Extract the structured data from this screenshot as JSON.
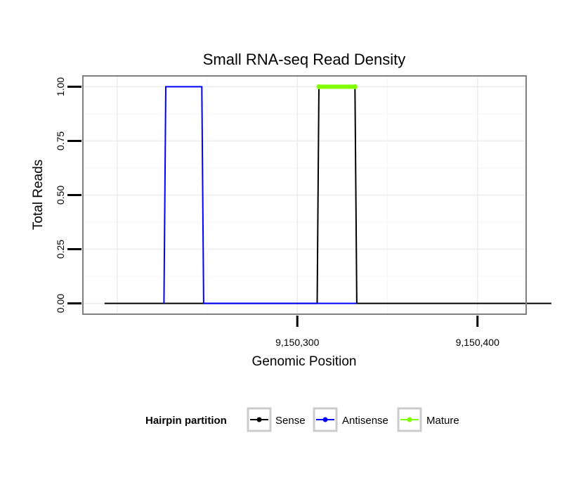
{
  "chart_data": {
    "type": "line",
    "title": "Small RNA-seq Read Density",
    "xlabel": "Genomic Position",
    "ylabel": "Total Reads",
    "xlim": [
      9150181,
      9150427
    ],
    "ylim": [
      -0.05,
      1.05
    ],
    "x_ticks": [
      {
        "value": 9150300,
        "label": "9,150,300"
      },
      {
        "value": 9150400,
        "label": "9,150,400"
      }
    ],
    "y_ticks": [
      {
        "value": 0,
        "label": "0.00"
      },
      {
        "value": 0.25,
        "label": "0.25"
      },
      {
        "value": 0.5,
        "label": "0.50"
      },
      {
        "value": 0.75,
        "label": "0.75"
      },
      {
        "value": 1,
        "label": "1.00"
      }
    ],
    "grid": true,
    "legend": {
      "title": "Hairpin partition",
      "position": "bottom",
      "entries": [
        "Sense",
        "Antisense",
        "Mature"
      ]
    },
    "series": [
      {
        "name": "Sense",
        "color": "#000000",
        "x": [
          9150193,
          9150311,
          9150312,
          9150332,
          9150333,
          9150441
        ],
        "y": [
          0,
          0,
          1,
          1,
          0,
          0
        ]
      },
      {
        "name": "Antisense",
        "color": "#0000ff",
        "x": [
          9150226,
          9150227,
          9150247,
          9150248,
          9150311,
          9150312,
          9150332,
          9150333
        ],
        "y": [
          0,
          1,
          1,
          0,
          0,
          0,
          0,
          0
        ]
      },
      {
        "name": "Mature",
        "color": "#7fff00",
        "x": [
          9150312,
          9150332
        ],
        "y": [
          1,
          1
        ]
      }
    ]
  }
}
